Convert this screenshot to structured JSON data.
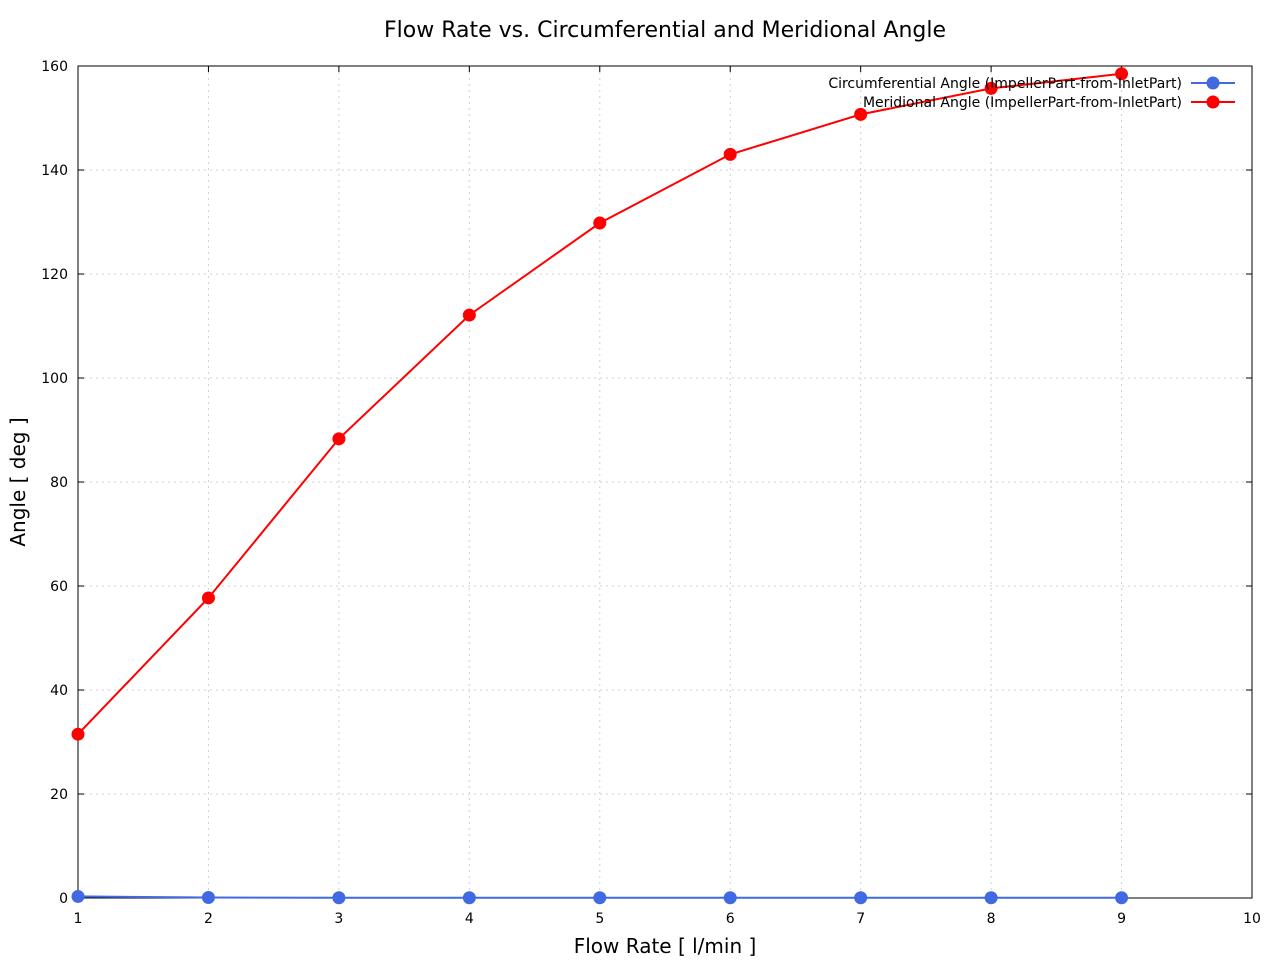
{
  "chart_data": {
    "type": "line",
    "title": "Flow Rate vs. Circumferential and Meridional Angle",
    "xlabel": "Flow Rate [ l/min ]",
    "ylabel": "Angle [ deg ]",
    "xlim": [
      1,
      10
    ],
    "ylim": [
      0,
      160
    ],
    "xticks": [
      1,
      2,
      3,
      4,
      5,
      6,
      7,
      8,
      9,
      10
    ],
    "yticks": [
      0,
      20,
      40,
      60,
      80,
      100,
      120,
      140,
      160
    ],
    "grid": true,
    "legend_position": "top-right",
    "x": [
      1,
      2,
      3,
      4,
      5,
      6,
      7,
      8,
      9
    ],
    "series": [
      {
        "name": "Circumferential Angle (ImpellerPart-from-InletPart)",
        "color": "#4169e1",
        "values": [
          0.3,
          0.1,
          0.05,
          0.05,
          0.05,
          0.05,
          0.05,
          0.05,
          0.05
        ]
      },
      {
        "name": "Meridional Angle (ImpellerPart-from-InletPart)",
        "color": "#ff0000",
        "values": [
          31.5,
          57.7,
          88.3,
          112.1,
          129.8,
          143.0,
          150.7,
          155.7,
          158.5
        ]
      }
    ]
  }
}
